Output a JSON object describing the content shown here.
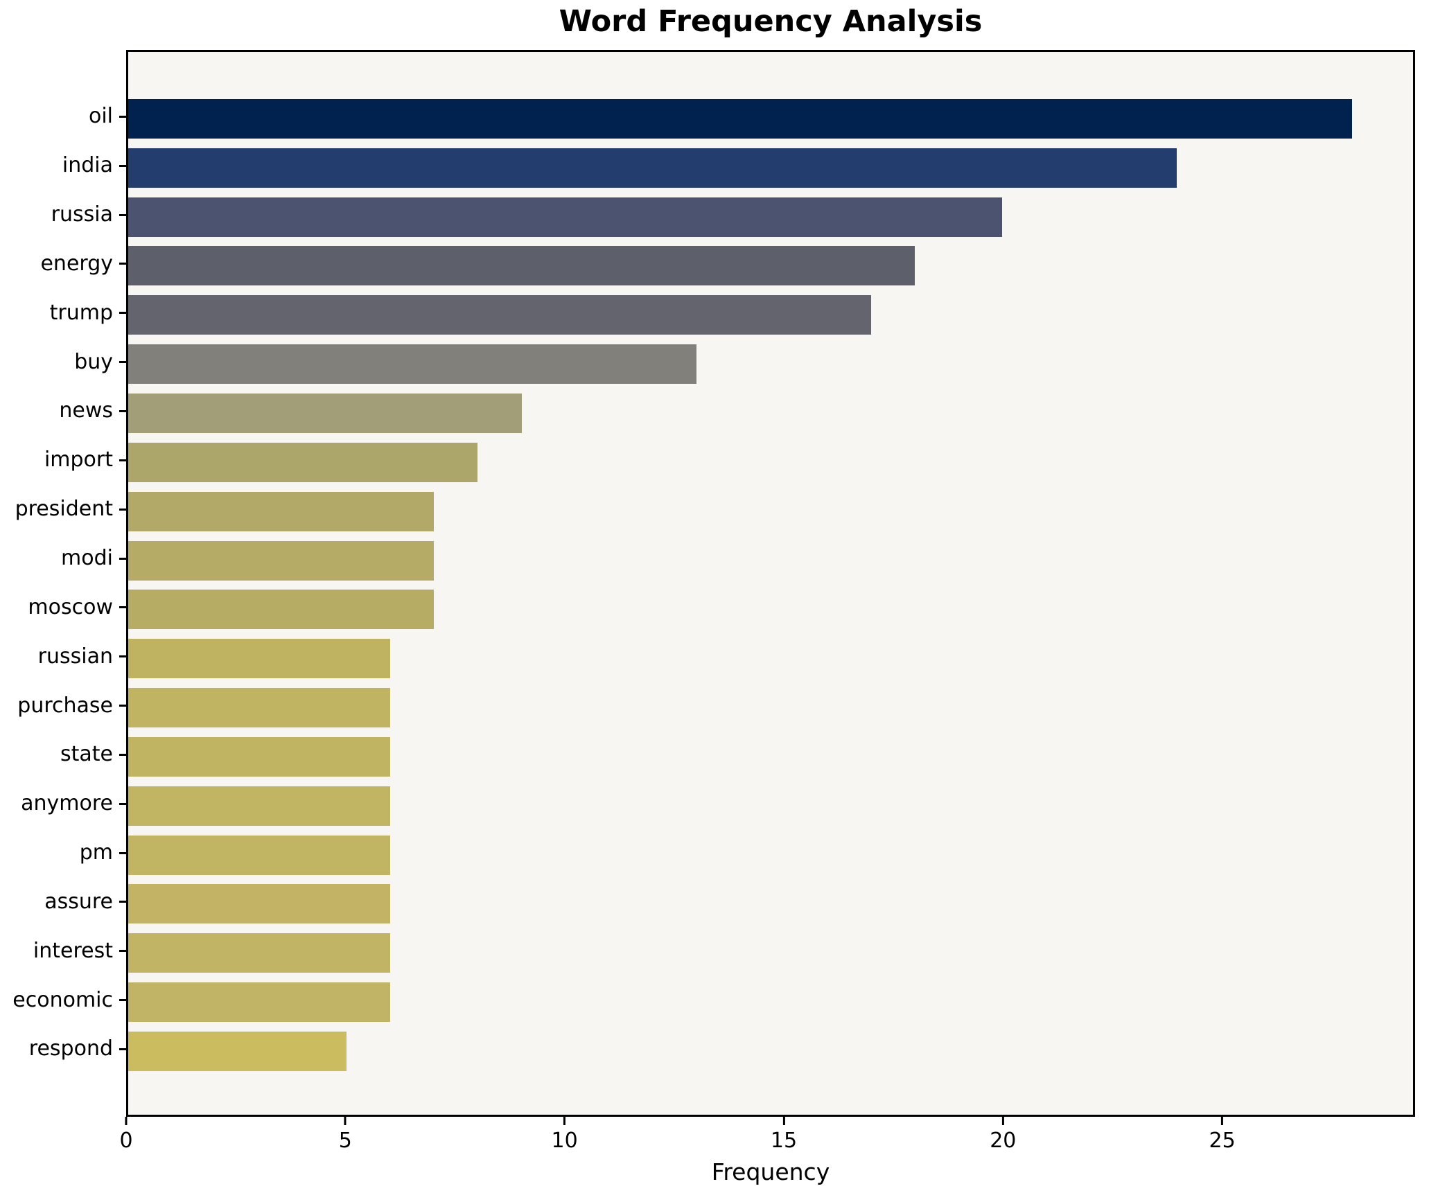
{
  "chart_data": {
    "type": "bar",
    "orientation": "horizontal",
    "title": "Word Frequency Analysis",
    "xlabel": "Frequency",
    "ylabel": "",
    "categories": [
      "oil",
      "india",
      "russia",
      "energy",
      "trump",
      "buy",
      "news",
      "import",
      "president",
      "modi",
      "moscow",
      "russian",
      "purchase",
      "state",
      "anymore",
      "pm",
      "assure",
      "interest",
      "economic",
      "respond"
    ],
    "values": [
      28,
      24,
      20,
      18,
      17,
      13,
      9,
      8,
      7,
      7,
      7,
      6,
      6,
      6,
      6,
      6,
      6,
      6,
      6,
      5
    ],
    "bar_colors": [
      "#01224f",
      "#233d6e",
      "#4c5370",
      "#5d5f6a",
      "#63646d",
      "#82807a",
      "#a29e77",
      "#aca66b",
      "#b2a968",
      "#b5ab66",
      "#b7ac63",
      "#bfb261",
      "#c0b361",
      "#c0b362",
      "#c1b463",
      "#c1b463",
      "#c2b464",
      "#c2b465",
      "#c2b466",
      "#ccbc60"
    ],
    "xlim": [
      0,
      29.4
    ],
    "xticks": [
      0,
      5,
      10,
      15,
      20,
      25
    ],
    "grid": false,
    "legend": null,
    "plot_background": "#f7f6f3",
    "figure_background": "#ffffff",
    "spine_color": "#000000"
  }
}
